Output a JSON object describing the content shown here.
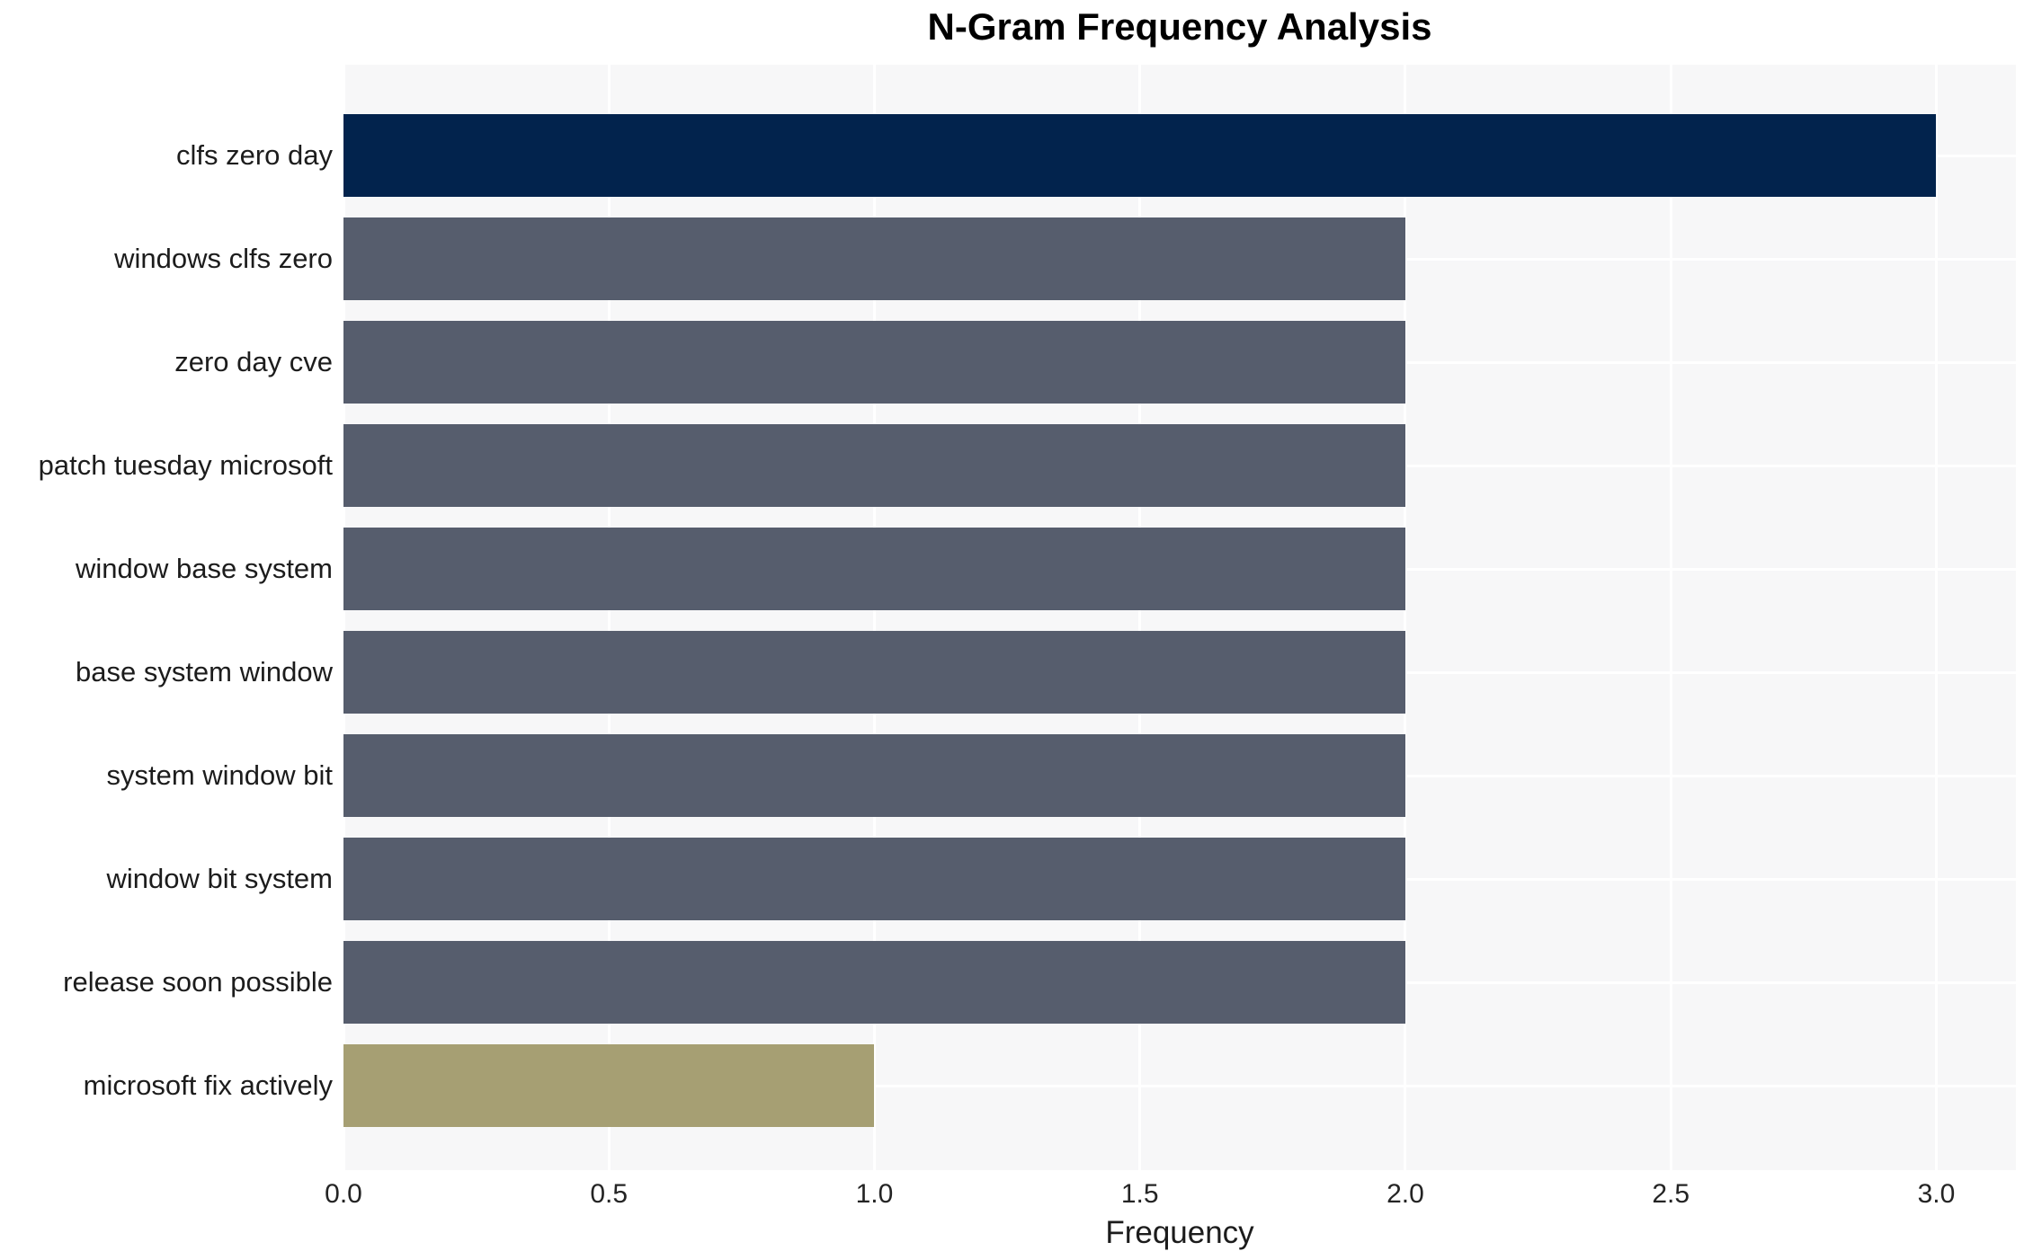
{
  "chart_data": {
    "type": "bar",
    "orientation": "horizontal",
    "title": "N-Gram Frequency Analysis",
    "xlabel": "Frequency",
    "ylabel": "",
    "categories": [
      "clfs zero day",
      "windows clfs zero",
      "zero day cve",
      "patch tuesday microsoft",
      "window base system",
      "base system window",
      "system window bit",
      "window bit system",
      "release soon possible",
      "microsoft fix actively"
    ],
    "values": [
      3,
      2,
      2,
      2,
      2,
      2,
      2,
      2,
      2,
      1
    ],
    "bar_colors": [
      "#02234d",
      "#565d6d",
      "#565d6d",
      "#565d6d",
      "#565d6d",
      "#565d6d",
      "#565d6d",
      "#565d6d",
      "#565d6d",
      "#a69f73"
    ],
    "xlim": [
      0,
      3.15
    ],
    "xticks": [
      0.0,
      0.5,
      1.0,
      1.5,
      2.0,
      2.5,
      3.0
    ],
    "xtick_labels": [
      "0.0",
      "0.5",
      "1.0",
      "1.5",
      "2.0",
      "2.5",
      "3.0"
    ],
    "grid": true,
    "legend": false,
    "colors": {
      "highlight_bar": "#02234d",
      "base_bar": "#565d6d",
      "low_bar": "#a69f73",
      "plot_background": "#f7f7f8",
      "gridline": "#ffffff",
      "title_text": "#000000",
      "tick_text": "#242424",
      "label_text": "#1c1c1c"
    }
  }
}
